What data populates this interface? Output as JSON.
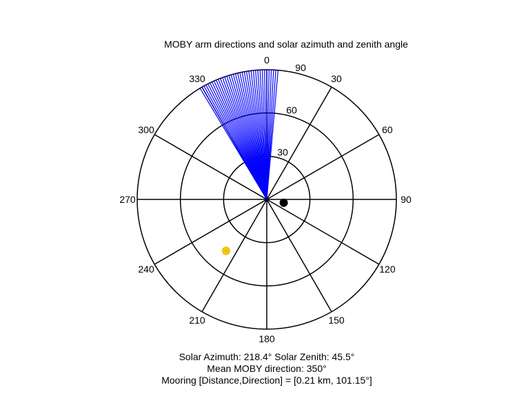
{
  "chart_data": {
    "type": "polar",
    "title": "MOBY arm directions and solar azimuth and zenith angle",
    "angle_tick_labels": [
      "0",
      "30",
      "60",
      "90",
      "120",
      "150",
      "180",
      "210",
      "240",
      "270",
      "300",
      "330"
    ],
    "radial_tick_labels": [
      "30",
      "60",
      "90"
    ],
    "radial_range": [
      0,
      90
    ],
    "angle_orientation": "clockwise from top",
    "series": [
      {
        "kind": "radial-lines",
        "color": "#0000ff",
        "directions_deg": [
          329,
          330,
          331,
          332,
          333,
          334,
          335,
          336,
          337,
          338,
          339,
          340,
          341,
          342,
          343,
          344,
          345,
          346,
          347,
          348,
          349,
          350,
          351,
          352,
          353,
          354,
          355,
          356,
          357,
          358,
          359,
          0,
          1,
          2,
          3,
          4,
          5
        ],
        "length": 90
      },
      {
        "kind": "marker",
        "label": "sun",
        "color": "#ffd700",
        "azimuth": 218.4,
        "zenith": 45.5
      },
      {
        "kind": "marker",
        "label": "mooring",
        "color": "#000000",
        "azimuth": 101.15,
        "radius": 12
      }
    ]
  },
  "footer": {
    "solar_line": "Solar Azimuth: 218.4°    Solar Zenith: 45.5°",
    "mean_line": "Mean MOBY direction: 350°",
    "mooring_line": "Mooring [Distance,Direction] = [0.21 km, 101.15°]"
  }
}
